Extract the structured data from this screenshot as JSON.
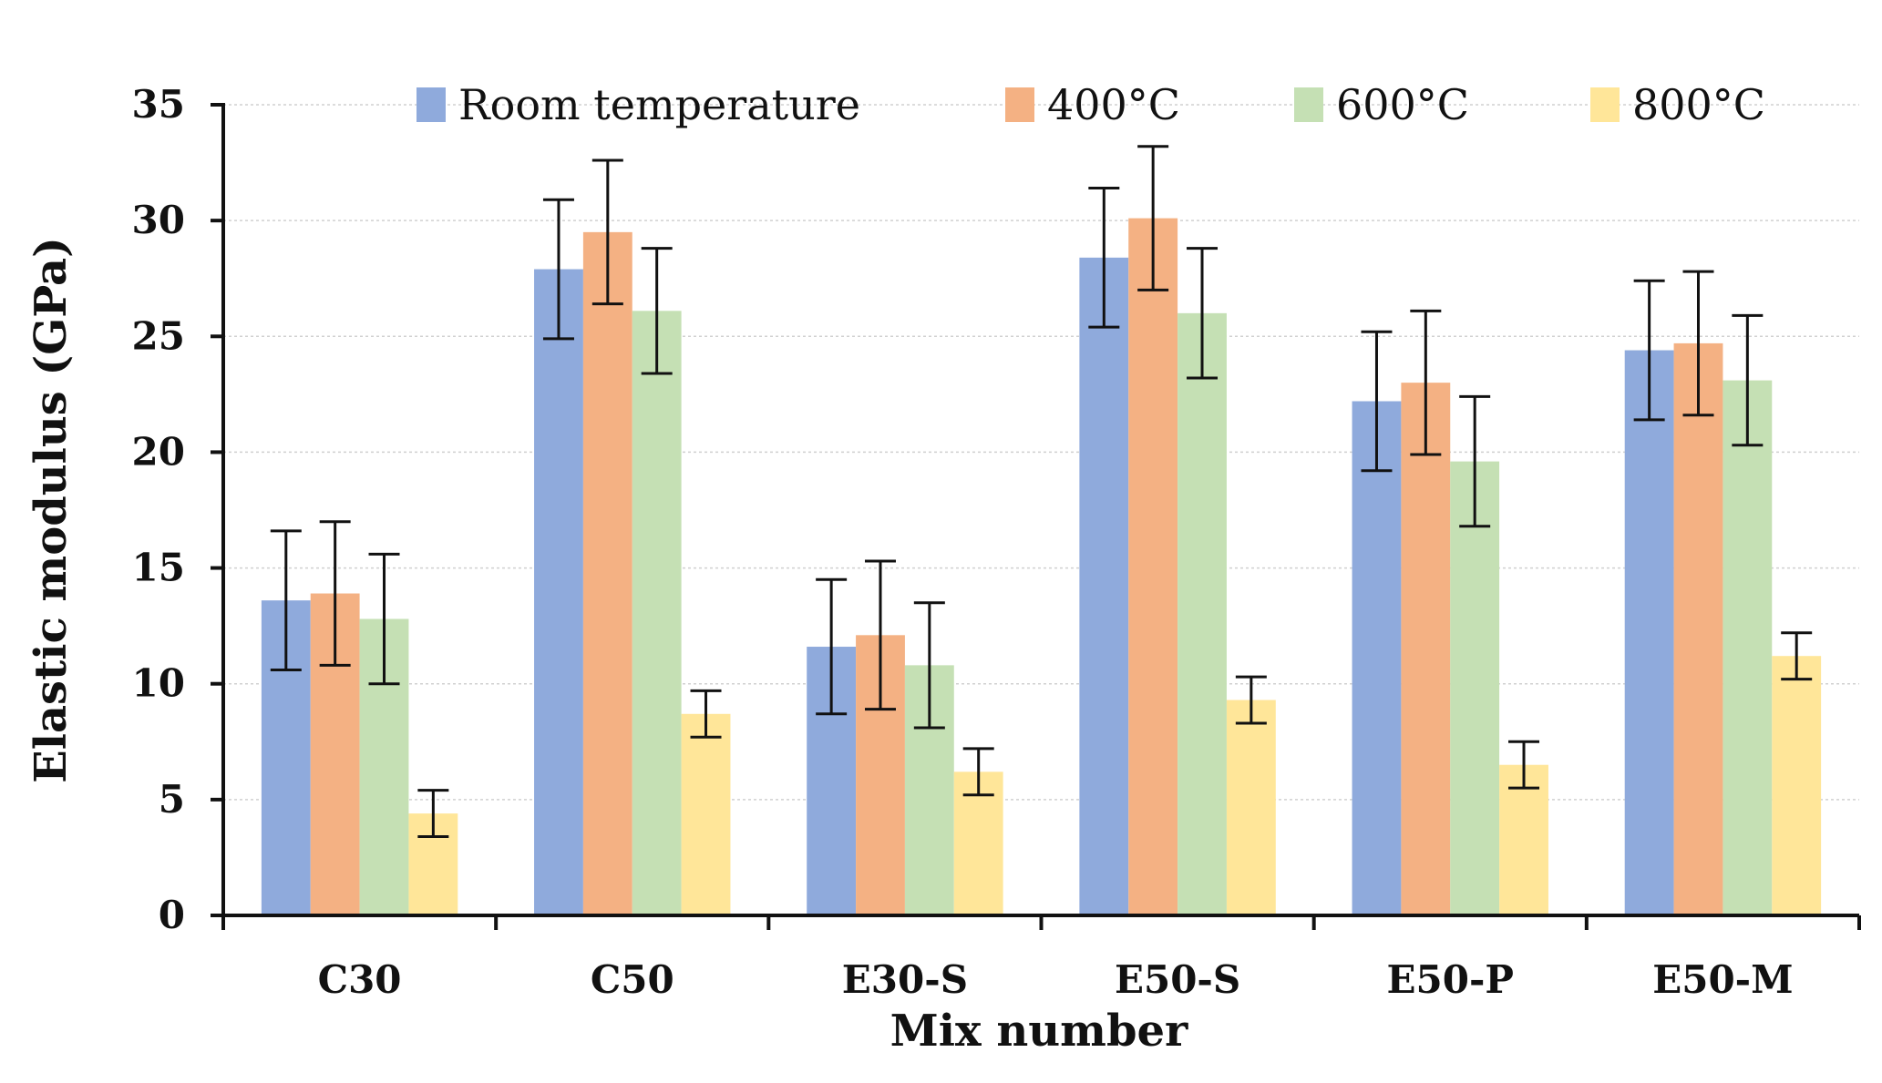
{
  "chart_data": {
    "type": "bar",
    "title": "",
    "xlabel": "Mix number",
    "ylabel": "Elastic modulus (GPa)",
    "ylim": [
      0,
      35
    ],
    "yticks": [
      0,
      5,
      10,
      15,
      20,
      25,
      30,
      35
    ],
    "grid": true,
    "legend_position": "top",
    "categories": [
      "C30",
      "C50",
      "E30-S",
      "E50-S",
      "E50-P",
      "E50-M"
    ],
    "series": [
      {
        "name": "Room temperature",
        "color": "#8FAADC",
        "values": [
          13.6,
          27.9,
          11.6,
          28.4,
          22.2,
          24.4
        ],
        "errors": [
          3.0,
          3.0,
          2.9,
          3.0,
          3.0,
          3.0
        ]
      },
      {
        "name": "400°C",
        "color": "#F4B183",
        "values": [
          13.9,
          29.5,
          12.1,
          30.1,
          23.0,
          24.7
        ],
        "errors": [
          3.1,
          3.1,
          3.2,
          3.1,
          3.1,
          3.1
        ]
      },
      {
        "name": "600°C",
        "color": "#C5E0B4",
        "values": [
          12.8,
          26.1,
          10.8,
          26.0,
          19.6,
          23.1
        ],
        "errors": [
          2.8,
          2.7,
          2.7,
          2.8,
          2.8,
          2.8
        ]
      },
      {
        "name": "800°C",
        "color": "#FFE699",
        "values": [
          4.4,
          8.7,
          6.2,
          9.3,
          6.5,
          11.2
        ],
        "errors": [
          1.0,
          1.0,
          1.0,
          1.0,
          1.0,
          1.0
        ]
      }
    ]
  }
}
